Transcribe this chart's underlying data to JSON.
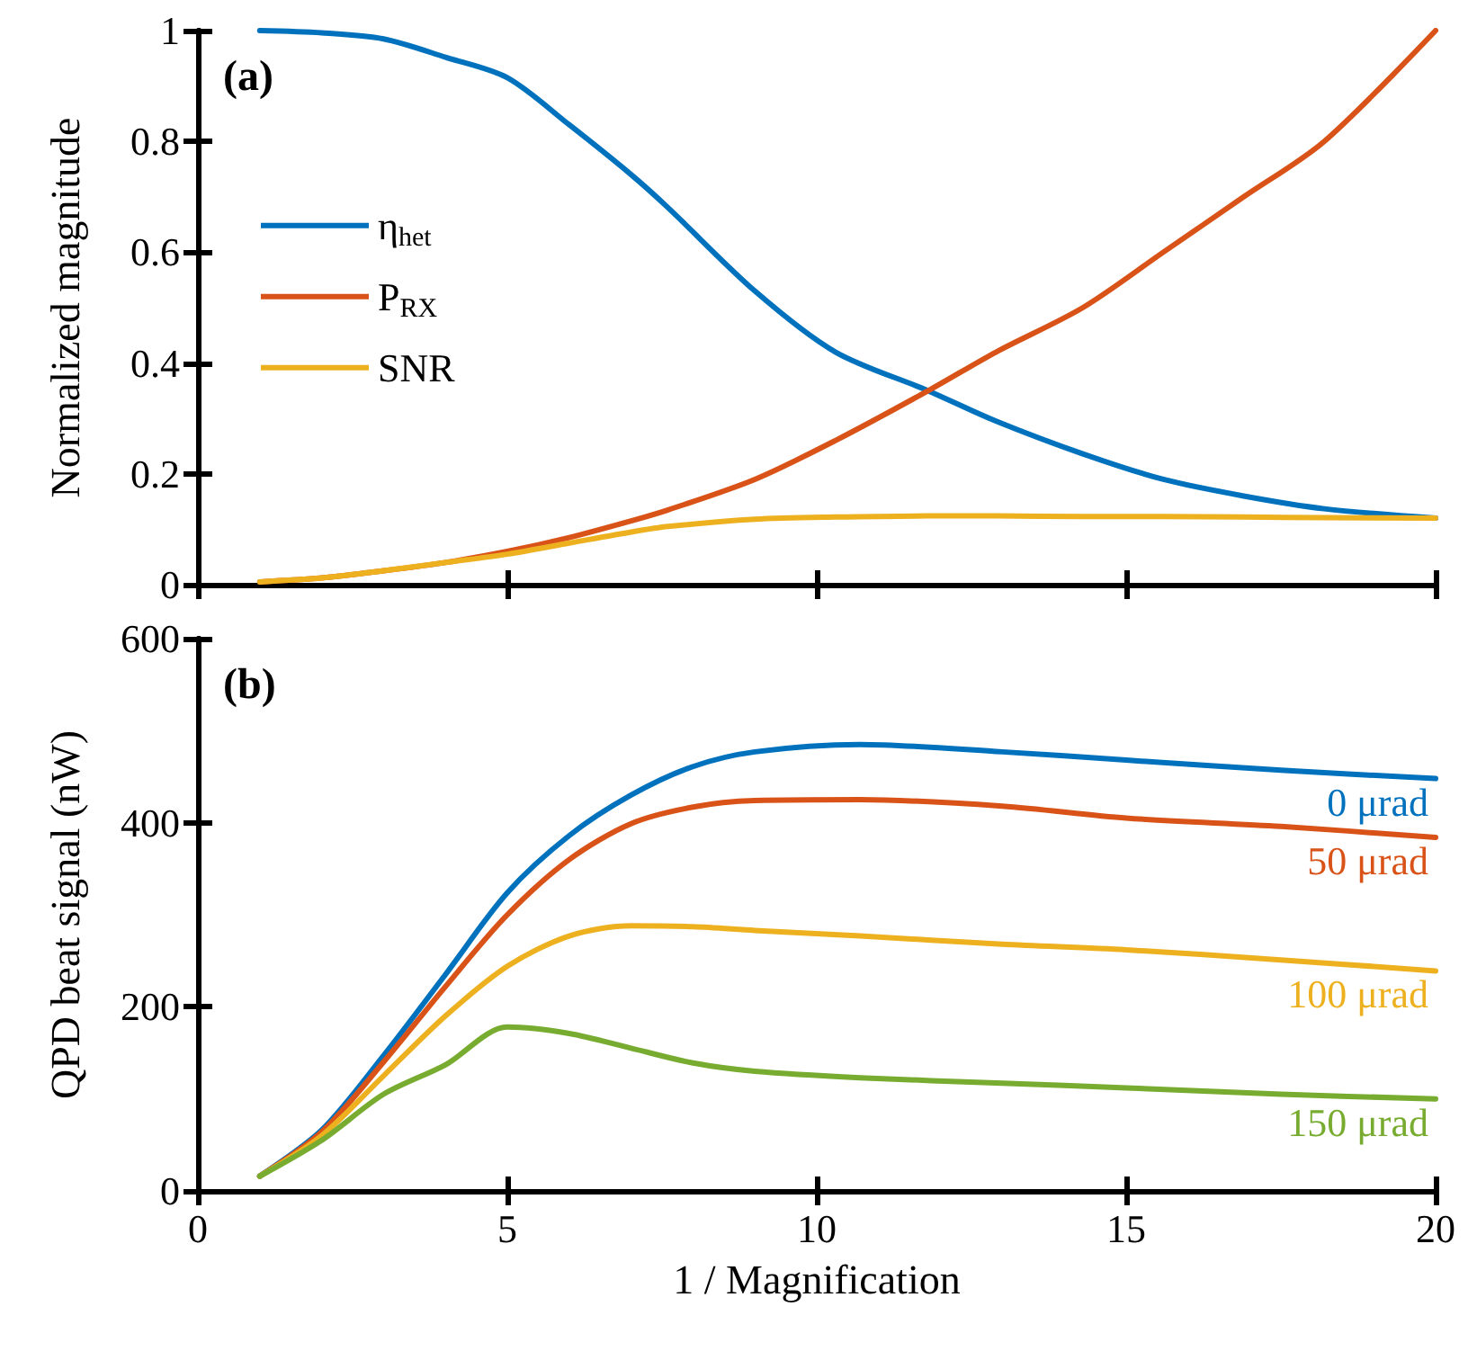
{
  "chart_data": [
    {
      "type": "line",
      "ylabel": "Normalized magnitude",
      "xlim": [
        0,
        20
      ],
      "xticks": [
        0,
        5,
        10,
        15,
        20
      ],
      "ylim": [
        0,
        1
      ],
      "yticks": [
        0,
        0.2,
        0.4,
        0.6,
        0.8,
        1
      ],
      "tick_labels": "y",
      "grid": false,
      "legend": "left",
      "marker": "none",
      "line_style": "solid",
      "annotations": [
        "(a)"
      ],
      "x": [
        1,
        2,
        3,
        4,
        5,
        6,
        7,
        7.6,
        9,
        10.3,
        11.8,
        12.9,
        14.3,
        15.6,
        16.9,
        18.2,
        20
      ],
      "series": [
        {
          "name": "η$_{het}$",
          "color": "#0072bd",
          "values": [
            1,
            0.996,
            0.985,
            0.952,
            0.915,
            0.83,
            0.74,
            0.68,
            0.53,
            0.42,
            0.35,
            0.295,
            0.236,
            0.19,
            0.16,
            0.137,
            0.12
          ]
        },
        {
          "name": "P$_{RX}$",
          "color": "#d95319",
          "values": [
            0.005,
            0.012,
            0.025,
            0.04,
            0.06,
            0.085,
            0.115,
            0.135,
            0.19,
            0.26,
            0.35,
            0.42,
            0.5,
            0.6,
            0.7,
            0.8,
            1
          ]
        },
        {
          "name": "SNR",
          "color": "#edb120",
          "values": [
            0.005,
            0.012,
            0.025,
            0.04,
            0.055,
            0.075,
            0.095,
            0.105,
            0.118,
            0.122,
            0.124,
            0.124,
            0.123,
            0.123,
            0.122,
            0.121,
            0.12
          ]
        }
      ]
    },
    {
      "type": "line",
      "xlabel": "1 / Magnification",
      "ylabel": "QPD beat signal (nW)",
      "xlim": [
        0,
        20
      ],
      "xticks": [
        0,
        5,
        10,
        15,
        20
      ],
      "ylim": [
        0,
        600
      ],
      "yticks": [
        0,
        200,
        400,
        600
      ],
      "grid": false,
      "legend": false,
      "marker": "none",
      "line_style": "solid",
      "annotations": [
        "(b)"
      ],
      "x": [
        1,
        2,
        3,
        4,
        5,
        6,
        7,
        8,
        9,
        10.7,
        13,
        15,
        17.5,
        20
      ],
      "series": [
        {
          "name": "0 μrad",
          "color": "#0072bd",
          "values": [
            16,
            66,
            147,
            235,
            324,
            386,
            430,
            461,
            477,
            485,
            477,
            468,
            457,
            448
          ]
        },
        {
          "name": "50 μrad",
          "color": "#d95319",
          "values": [
            16,
            64,
            140,
            222,
            300,
            360,
            399,
            417,
            424,
            425,
            418,
            405,
            396,
            384
          ]
        },
        {
          "name": "100 μrad",
          "color": "#edb120",
          "values": [
            16,
            60,
            125,
            190,
            244,
            277,
            288,
            287,
            283,
            277,
            268,
            262,
            251,
            239
          ]
        },
        {
          "name": "150 μrad",
          "color": "#77ac30",
          "values": [
            16,
            55,
            105,
            137,
            178,
            171,
            155,
            139,
            130,
            123,
            117,
            112,
            105,
            100
          ]
        }
      ]
    }
  ]
}
